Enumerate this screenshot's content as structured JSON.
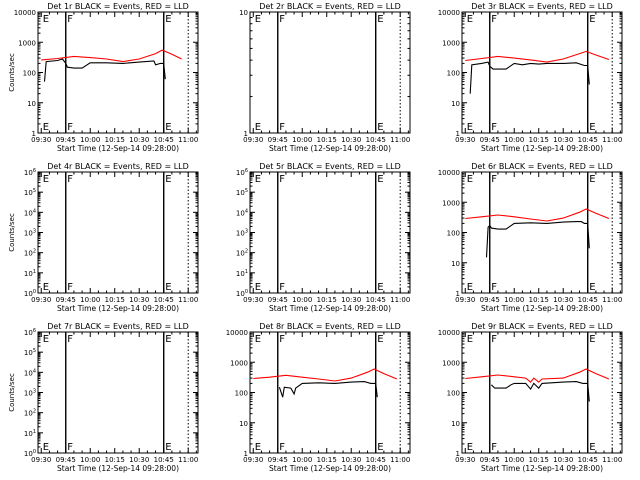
{
  "chart_data": [
    {
      "type": "line",
      "title": "Det 1r BLACK = Events, RED = LLD",
      "ylabel": "Counts/sec",
      "xlabel": "Start Time (12-Sep-14 09:28:00)",
      "y_scale": "log",
      "ylim": [
        1,
        10000
      ],
      "ytick_labels": [
        "1",
        "10",
        "100",
        "1000",
        "10000"
      ],
      "xtick_labels": [
        "09:30",
        "09:45",
        "10:00",
        "10:15",
        "10:30",
        "10:45",
        "11:00"
      ],
      "flags": [
        {
          "text": "E",
          "x": "09:30"
        },
        {
          "text": "F",
          "x": "09:45"
        },
        {
          "text": "E",
          "x": "10:45"
        }
      ],
      "solid_lines": [
        "09:45",
        "10:45"
      ],
      "dotted_lines": [
        "11:00"
      ],
      "series": [
        {
          "color": "#000000",
          "points": [
            [
              "09:32",
              50
            ],
            [
              "09:33",
              230
            ],
            [
              "09:40",
              250
            ],
            [
              "09:43",
              280
            ],
            [
              "09:45",
              200
            ],
            [
              "09:46",
              150
            ],
            [
              "09:50",
              140
            ],
            [
              "09:55",
              140
            ],
            [
              "10:00",
              210
            ],
            [
              "10:10",
              210
            ],
            [
              "10:20",
              200
            ],
            [
              "10:30",
              220
            ],
            [
              "10:39",
              240
            ],
            [
              "10:40",
              180
            ],
            [
              "10:43",
              200
            ],
            [
              "10:45",
              200
            ],
            [
              "10:46",
              60
            ]
          ]
        },
        {
          "color": "#ff0000",
          "points": [
            [
              "09:30",
              260
            ],
            [
              "09:40",
              290
            ],
            [
              "09:50",
              340
            ],
            [
              "10:00",
              310
            ],
            [
              "10:10",
              280
            ],
            [
              "10:20",
              230
            ],
            [
              "10:30",
              280
            ],
            [
              "10:40",
              420
            ],
            [
              "10:44",
              550
            ],
            [
              "10:50",
              400
            ],
            [
              "10:56",
              280
            ]
          ]
        }
      ]
    },
    {
      "type": "line",
      "title": "Det 2r BLACK = Events, RED = LLD",
      "ylabel": "",
      "xlabel": "Start Time (12-Sep-14 09:28:00)",
      "y_scale": "log",
      "ylim": [
        1,
        10
      ],
      "ytick_labels": [
        "1",
        "10"
      ],
      "xtick_labels": [
        "09:30",
        "09:45",
        "10:00",
        "10:15",
        "10:30",
        "10:45",
        "11:00"
      ],
      "flags": [
        {
          "text": "E",
          "x": "09:30"
        },
        {
          "text": "F",
          "x": "09:45"
        },
        {
          "text": "E",
          "x": "10:45"
        }
      ],
      "solid_lines": [
        "09:45",
        "10:45"
      ],
      "dotted_lines": [
        "11:00"
      ],
      "series": []
    },
    {
      "type": "line",
      "title": "Det 3r BLACK = Events, RED = LLD",
      "ylabel": "",
      "xlabel": "Start Time (12-Sep-14 09:28:00)",
      "y_scale": "log",
      "ylim": [
        1,
        10000
      ],
      "ytick_labels": [
        "1",
        "10",
        "100",
        "1000",
        "10000"
      ],
      "xtick_labels": [
        "09:30",
        "09:45",
        "10:00",
        "10:15",
        "10:30",
        "10:45",
        "11:00"
      ],
      "flags": [
        {
          "text": "E",
          "x": "09:30"
        },
        {
          "text": "F",
          "x": "09:45"
        },
        {
          "text": "E",
          "x": "10:45"
        }
      ],
      "solid_lines": [
        "09:45",
        "10:45"
      ],
      "dotted_lines": [
        "11:00"
      ],
      "series": [
        {
          "color": "#000000",
          "points": [
            [
              "09:33",
              20
            ],
            [
              "09:34",
              180
            ],
            [
              "09:40",
              200
            ],
            [
              "09:44",
              220
            ],
            [
              "09:45",
              160
            ],
            [
              "09:47",
              130
            ],
            [
              "09:55",
              130
            ],
            [
              "10:00",
              200
            ],
            [
              "10:05",
              180
            ],
            [
              "10:10",
              200
            ],
            [
              "10:15",
              190
            ],
            [
              "10:20",
              200
            ],
            [
              "10:30",
              200
            ],
            [
              "10:38",
              210
            ],
            [
              "10:43",
              170
            ],
            [
              "10:45",
              170
            ],
            [
              "10:46",
              40
            ]
          ]
        },
        {
          "color": "#ff0000",
          "points": [
            [
              "09:30",
              250
            ],
            [
              "09:40",
              290
            ],
            [
              "09:50",
              340
            ],
            [
              "10:00",
              300
            ],
            [
              "10:10",
              260
            ],
            [
              "10:20",
              220
            ],
            [
              "10:30",
              280
            ],
            [
              "10:40",
              420
            ],
            [
              "10:44",
              500
            ],
            [
              "10:50",
              380
            ],
            [
              "10:58",
              270
            ]
          ]
        }
      ]
    },
    {
      "type": "line",
      "title": "Det 4r BLACK = Events, RED = LLD",
      "ylabel": "Counts/sec",
      "xlabel": "Start Time (12-Sep-14 09:28:00)",
      "y_scale": "log",
      "ylim": [
        1,
        1000000
      ],
      "ytick_labels": [
        "10^0",
        "10^1",
        "10^2",
        "10^3",
        "10^4",
        "10^5",
        "10^6"
      ],
      "xtick_labels": [
        "09:30",
        "09:45",
        "10:00",
        "10:15",
        "10:30",
        "10:45",
        "11:00"
      ],
      "flags": [
        {
          "text": "E",
          "x": "09:30"
        },
        {
          "text": "F",
          "x": "09:45"
        },
        {
          "text": "E",
          "x": "10:45"
        }
      ],
      "solid_lines": [
        "09:45",
        "10:45"
      ],
      "dotted_lines": [
        "11:00"
      ],
      "series": []
    },
    {
      "type": "line",
      "title": "Det 5r BLACK = Events, RED = LLD",
      "ylabel": "",
      "xlabel": "Start Time (12-Sep-14 09:28:00)",
      "y_scale": "log",
      "ylim": [
        1,
        1000000
      ],
      "ytick_labels": [
        "10^0",
        "10^1",
        "10^2",
        "10^3",
        "10^4",
        "10^5",
        "10^6"
      ],
      "xtick_labels": [
        "09:30",
        "09:45",
        "10:00",
        "10:15",
        "10:30",
        "10:45",
        "11:00"
      ],
      "flags": [
        {
          "text": "E",
          "x": "09:30"
        },
        {
          "text": "F",
          "x": "09:45"
        },
        {
          "text": "E",
          "x": "10:45"
        }
      ],
      "solid_lines": [
        "09:45",
        "10:45"
      ],
      "dotted_lines": [
        "11:00"
      ],
      "series": []
    },
    {
      "type": "line",
      "title": "Det 6r BLACK = Events, RED = LLD",
      "ylabel": "",
      "xlabel": "Start Time (12-Sep-14 09:28:00)",
      "y_scale": "log",
      "ylim": [
        1,
        10000
      ],
      "ytick_labels": [
        "1",
        "10",
        "100",
        "1000",
        "10000"
      ],
      "xtick_labels": [
        "09:30",
        "09:45",
        "10:00",
        "10:15",
        "10:30",
        "10:45",
        "11:00"
      ],
      "flags": [
        {
          "text": "E",
          "x": "09:30"
        },
        {
          "text": "F",
          "x": "09:45"
        },
        {
          "text": "E",
          "x": "10:45"
        }
      ],
      "solid_lines": [
        "09:45",
        "10:45"
      ],
      "dotted_lines": [
        "11:00"
      ],
      "series": [
        {
          "color": "#000000",
          "points": [
            [
              "09:43",
              15
            ],
            [
              "09:44",
              150
            ],
            [
              "09:45",
              170
            ],
            [
              "09:46",
              140
            ],
            [
              "09:50",
              130
            ],
            [
              "09:55",
              130
            ],
            [
              "10:00",
              200
            ],
            [
              "10:10",
              210
            ],
            [
              "10:20",
              200
            ],
            [
              "10:30",
              220
            ],
            [
              "10:38",
              230
            ],
            [
              "10:41",
              230
            ],
            [
              "10:43",
              200
            ],
            [
              "10:45",
              200
            ],
            [
              "10:46",
              30
            ]
          ]
        },
        {
          "color": "#ff0000",
          "points": [
            [
              "09:30",
              290
            ],
            [
              "09:40",
              330
            ],
            [
              "09:50",
              380
            ],
            [
              "10:00",
              330
            ],
            [
              "10:10",
              280
            ],
            [
              "10:20",
              240
            ],
            [
              "10:30",
              300
            ],
            [
              "10:40",
              470
            ],
            [
              "10:44",
              600
            ],
            [
              "10:50",
              430
            ],
            [
              "10:58",
              290
            ]
          ]
        }
      ]
    },
    {
      "type": "line",
      "title": "Det 7r BLACK = Events, RED = LLD",
      "ylabel": "Counts/sec",
      "xlabel": "Start Time (12-Sep-14 09:28:00)",
      "y_scale": "log",
      "ylim": [
        1,
        1000000
      ],
      "ytick_labels": [
        "10^0",
        "10^1",
        "10^2",
        "10^3",
        "10^4",
        "10^5",
        "10^6"
      ],
      "xtick_labels": [
        "09:30",
        "09:45",
        "10:00",
        "10:15",
        "10:30",
        "10:45",
        "11:00"
      ],
      "flags": [
        {
          "text": "E",
          "x": "09:30"
        },
        {
          "text": "F",
          "x": "09:45"
        },
        {
          "text": "E",
          "x": "10:45"
        }
      ],
      "solid_lines": [
        "09:45",
        "10:45"
      ],
      "dotted_lines": [
        "11:00"
      ],
      "series": []
    },
    {
      "type": "line",
      "title": "Det 8r BLACK = Events, RED = LLD",
      "ylabel": "",
      "xlabel": "Start Time (12-Sep-14 09:28:00)",
      "y_scale": "log",
      "ylim": [
        1,
        10000
      ],
      "ytick_labels": [
        "1",
        "10",
        "100",
        "1000",
        "10000"
      ],
      "xtick_labels": [
        "09:30",
        "09:45",
        "10:00",
        "10:15",
        "10:30",
        "10:45",
        "11:00"
      ],
      "flags": [
        {
          "text": "E",
          "x": "09:30"
        },
        {
          "text": "F",
          "x": "09:45"
        },
        {
          "text": "E",
          "x": "10:45"
        }
      ],
      "solid_lines": [
        "09:45",
        "10:45"
      ],
      "dotted_lines": [
        "11:00"
      ],
      "series": [
        {
          "color": "#000000",
          "points": [
            [
              "09:46",
              150
            ],
            [
              "09:48",
              70
            ],
            [
              "09:49",
              150
            ],
            [
              "09:53",
              140
            ],
            [
              "09:55",
              90
            ],
            [
              "09:56",
              140
            ],
            [
              "10:00",
              200
            ],
            [
              "10:10",
              210
            ],
            [
              "10:20",
              200
            ],
            [
              "10:30",
              220
            ],
            [
              "10:38",
              230
            ],
            [
              "10:42",
              200
            ],
            [
              "10:45",
              200
            ],
            [
              "10:46",
              70
            ]
          ]
        },
        {
          "color": "#ff0000",
          "points": [
            [
              "09:30",
              290
            ],
            [
              "09:40",
              320
            ],
            [
              "09:50",
              370
            ],
            [
              "10:00",
              320
            ],
            [
              "10:10",
              280
            ],
            [
              "10:20",
              240
            ],
            [
              "10:30",
              300
            ],
            [
              "10:40",
              470
            ],
            [
              "10:44",
              600
            ],
            [
              "10:50",
              420
            ],
            [
              "10:58",
              280
            ]
          ]
        }
      ]
    },
    {
      "type": "line",
      "title": "Det 9r BLACK = Events, RED = LLD",
      "ylabel": "",
      "xlabel": "Start Time (12-Sep-14 09:28:00)",
      "y_scale": "log",
      "ylim": [
        1,
        10000
      ],
      "ytick_labels": [
        "1",
        "10",
        "100",
        "1000",
        "10000"
      ],
      "xtick_labels": [
        "09:30",
        "09:45",
        "10:00",
        "10:15",
        "10:30",
        "10:45",
        "11:00"
      ],
      "flags": [
        {
          "text": "E",
          "x": "09:30"
        },
        {
          "text": "F",
          "x": "09:45"
        },
        {
          "text": "E",
          "x": "10:45"
        }
      ],
      "solid_lines": [
        "09:45",
        "10:45"
      ],
      "dotted_lines": [
        "11:00"
      ],
      "series": [
        {
          "color": "#000000",
          "points": [
            [
              "09:46",
              180
            ],
            [
              "09:48",
              140
            ],
            [
              "09:55",
              140
            ],
            [
              "09:58",
              180
            ],
            [
              "10:00",
              200
            ],
            [
              "10:07",
              200
            ],
            [
              "10:10",
              130
            ],
            [
              "10:12",
              200
            ],
            [
              "10:15",
              140
            ],
            [
              "10:17",
              200
            ],
            [
              "10:30",
              220
            ],
            [
              "10:38",
              230
            ],
            [
              "10:42",
              200
            ],
            [
              "10:45",
              200
            ],
            [
              "10:46",
              50
            ]
          ]
        },
        {
          "color": "#ff0000",
          "points": [
            [
              "09:30",
              290
            ],
            [
              "09:40",
              330
            ],
            [
              "09:50",
              380
            ],
            [
              "10:00",
              330
            ],
            [
              "10:07",
              300
            ],
            [
              "10:10",
              220
            ],
            [
              "10:12",
              300
            ],
            [
              "10:15",
              220
            ],
            [
              "10:17",
              280
            ],
            [
              "10:30",
              300
            ],
            [
              "10:40",
              470
            ],
            [
              "10:44",
              600
            ],
            [
              "10:50",
              420
            ],
            [
              "10:58",
              280
            ]
          ]
        }
      ]
    }
  ]
}
